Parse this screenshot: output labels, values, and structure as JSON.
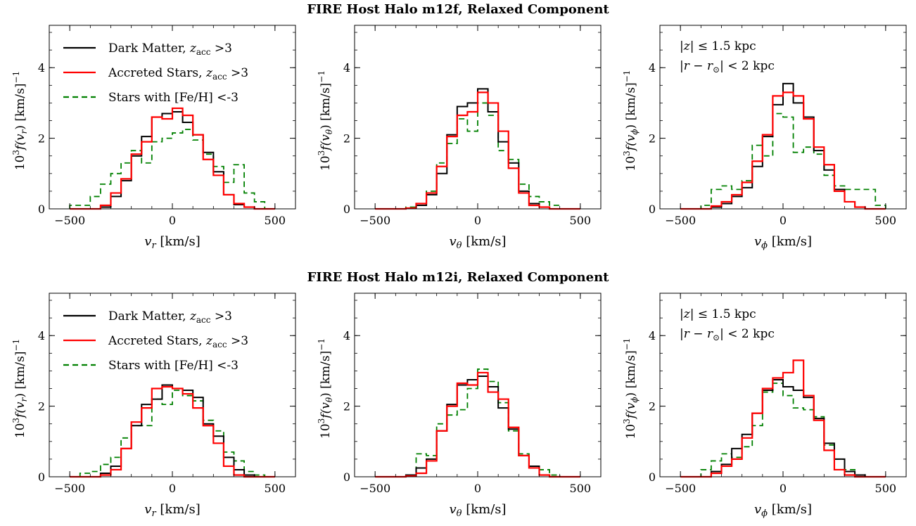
{
  "figure": {
    "rows": [
      {
        "title": "FIRE Host Halo m12f, Relaxed Component"
      },
      {
        "title": "FIRE Host Halo m12i, Relaxed Component"
      }
    ],
    "legend": {
      "dm": "Dark Matter, z_acc >3",
      "acc": "Accreted Stars, z_acc >3",
      "feh": "Stars with [Fe/H] <-3"
    },
    "selection_note": [
      "|z| ≤ 1.5 kpc",
      "|r − r_⊙| < 2 kpc"
    ],
    "series_styles": {
      "dm": "#000000",
      "acc": "#ff0000",
      "feh": "#008000"
    }
  },
  "chart_data": [
    {
      "type": "line",
      "panel": "m12f-vr",
      "xlabel": "v_r [km/s]",
      "ylabel": "10³f(v_r) [km/s]⁻¹",
      "xlim": [
        -600,
        600
      ],
      "ylim": [
        0,
        5.2
      ],
      "xticks": [
        -500,
        0,
        500
      ],
      "yticks": [
        0,
        2,
        4
      ],
      "legend_placement": "top-left",
      "bin_edges": [
        -500,
        -450,
        -400,
        -350,
        -300,
        -250,
        -200,
        -150,
        -100,
        -50,
        0,
        50,
        100,
        150,
        200,
        250,
        300,
        350,
        400,
        450,
        500
      ],
      "series": [
        {
          "key": "dm",
          "values": [
            0,
            0,
            0,
            0.05,
            0.35,
            0.8,
            1.5,
            2.05,
            2.6,
            2.7,
            2.75,
            2.45,
            2.1,
            1.6,
            1.05,
            0.4,
            0.12,
            0.05,
            0,
            0
          ]
        },
        {
          "key": "acc",
          "values": [
            0,
            0,
            0,
            0.1,
            0.45,
            0.85,
            1.55,
            1.9,
            2.6,
            2.55,
            2.85,
            2.65,
            2.1,
            1.4,
            0.95,
            0.4,
            0.15,
            0.05,
            0,
            0
          ]
        },
        {
          "key": "feh",
          "values": [
            0.1,
            0.1,
            0.35,
            0.7,
            1.0,
            1.3,
            1.65,
            1.3,
            1.9,
            2.0,
            2.15,
            2.25,
            1.95,
            1.55,
            1.2,
            0.75,
            1.25,
            0.45,
            0.2,
            0
          ]
        }
      ]
    },
    {
      "type": "line",
      "panel": "m12f-vtheta",
      "xlabel": "v_θ [km/s]",
      "ylabel": "10³f(v_θ) [km/s]⁻¹",
      "xlim": [
        -600,
        600
      ],
      "ylim": [
        0,
        5.2
      ],
      "xticks": [
        -500,
        0,
        500
      ],
      "yticks": [
        0,
        2,
        4
      ],
      "bin_edges": [
        -500,
        -450,
        -400,
        -350,
        -300,
        -250,
        -200,
        -150,
        -100,
        -50,
        0,
        50,
        100,
        150,
        200,
        250,
        300,
        350,
        400,
        450,
        500
      ],
      "series": [
        {
          "key": "dm",
          "values": [
            0,
            0,
            0,
            0.02,
            0.1,
            0.4,
            1.0,
            2.1,
            2.9,
            3.0,
            3.4,
            2.75,
            1.9,
            1.3,
            0.5,
            0.15,
            0.05,
            0,
            0,
            0
          ]
        },
        {
          "key": "acc",
          "values": [
            0,
            0,
            0,
            0.02,
            0.15,
            0.45,
            1.2,
            2.05,
            2.65,
            2.75,
            3.3,
            3.0,
            2.2,
            1.15,
            0.45,
            0.1,
            0.05,
            0,
            0,
            0
          ]
        },
        {
          "key": "feh",
          "values": [
            0,
            0,
            0,
            0.05,
            0.1,
            0.5,
            1.3,
            1.85,
            2.55,
            2.2,
            3.0,
            2.65,
            1.65,
            1.4,
            0.7,
            0.35,
            0.2,
            0.1,
            0,
            0
          ]
        }
      ]
    },
    {
      "type": "line",
      "panel": "m12f-vphi",
      "xlabel": "v_ϕ [km/s]",
      "ylabel": "10³f(v_ϕ) [km/s]⁻¹",
      "xlim": [
        -600,
        600
      ],
      "ylim": [
        0,
        5.2
      ],
      "xticks": [
        -500,
        0,
        500
      ],
      "yticks": [
        0,
        2,
        4
      ],
      "bin_edges": [
        -500,
        -450,
        -400,
        -350,
        -300,
        -250,
        -200,
        -150,
        -100,
        -50,
        0,
        50,
        100,
        150,
        200,
        250,
        300,
        350,
        400,
        450,
        500
      ],
      "series": [
        {
          "key": "dm",
          "values": [
            0,
            0,
            0,
            0.05,
            0.15,
            0.35,
            0.6,
            1.2,
            2.05,
            2.95,
            3.55,
            3.0,
            2.6,
            1.65,
            1.1,
            0.55,
            0.2,
            0.05,
            0,
            0
          ]
        },
        {
          "key": "acc",
          "values": [
            0,
            0,
            0,
            0.08,
            0.2,
            0.4,
            0.75,
            1.35,
            2.1,
            3.2,
            3.3,
            3.2,
            2.55,
            1.75,
            1.25,
            0.5,
            0.2,
            0.05,
            0,
            0
          ]
        },
        {
          "key": "feh",
          "values": [
            0,
            0,
            0.1,
            0.55,
            0.65,
            0.55,
            0.8,
            1.8,
            1.5,
            2.7,
            2.6,
            1.6,
            1.75,
            1.55,
            0.95,
            0.65,
            0.55,
            0.55,
            0.55,
            0.1
          ]
        }
      ]
    },
    {
      "type": "line",
      "panel": "m12i-vr",
      "xlabel": "v_r [km/s]",
      "ylabel": "10³f(v_r) [km/s]⁻¹",
      "xlim": [
        -600,
        600
      ],
      "ylim": [
        0,
        5.2
      ],
      "xticks": [
        -500,
        0,
        500
      ],
      "yticks": [
        0,
        2,
        4
      ],
      "legend_placement": "top-left",
      "bin_edges": [
        -500,
        -450,
        -400,
        -350,
        -300,
        -250,
        -200,
        -150,
        -100,
        -50,
        0,
        50,
        100,
        150,
        200,
        250,
        300,
        350,
        400,
        450,
        500
      ],
      "series": [
        {
          "key": "dm",
          "values": [
            0,
            0,
            0,
            0.1,
            0.3,
            0.8,
            1.45,
            2.05,
            2.2,
            2.6,
            2.5,
            2.45,
            2.25,
            1.5,
            1.15,
            0.55,
            0.2,
            0.05,
            0,
            0
          ]
        },
        {
          "key": "acc",
          "values": [
            0,
            0,
            0,
            0.05,
            0.2,
            0.8,
            1.55,
            1.95,
            2.5,
            2.55,
            2.5,
            2.35,
            1.95,
            1.45,
            0.95,
            0.3,
            0.05,
            0,
            0,
            0
          ]
        },
        {
          "key": "feh",
          "values": [
            0,
            0.1,
            0.15,
            0.35,
            0.55,
            1.1,
            1.45,
            1.45,
            2.2,
            2.05,
            2.45,
            2.3,
            2.15,
            1.6,
            1.3,
            0.7,
            0.45,
            0.15,
            0.05,
            0
          ]
        }
      ]
    },
    {
      "type": "line",
      "panel": "m12i-vtheta",
      "xlabel": "v_θ [km/s]",
      "ylabel": "10³f(v_θ) [km/s]⁻¹",
      "xlim": [
        -600,
        600
      ],
      "ylim": [
        0,
        5.2
      ],
      "xticks": [
        -500,
        0,
        500
      ],
      "yticks": [
        0,
        2,
        4
      ],
      "bin_edges": [
        -500,
        -450,
        -400,
        -350,
        -300,
        -250,
        -200,
        -150,
        -100,
        -50,
        0,
        50,
        100,
        150,
        200,
        250,
        300,
        350,
        400,
        450,
        500
      ],
      "series": [
        {
          "key": "dm",
          "values": [
            0,
            0,
            0,
            0.05,
            0.25,
            0.5,
            1.3,
            2.05,
            2.6,
            2.75,
            2.85,
            2.55,
            1.95,
            1.35,
            0.6,
            0.3,
            0.05,
            0,
            0,
            0
          ]
        },
        {
          "key": "acc",
          "values": [
            0,
            0,
            0,
            0.02,
            0.1,
            0.45,
            1.3,
            2.0,
            2.65,
            2.6,
            2.95,
            2.4,
            2.2,
            1.4,
            0.6,
            0.25,
            0.05,
            0,
            0,
            0
          ]
        },
        {
          "key": "feh",
          "values": [
            0,
            0,
            0,
            0.05,
            0.65,
            0.6,
            1.5,
            1.75,
            1.9,
            2.5,
            3.05,
            2.7,
            2.1,
            1.3,
            0.65,
            0.3,
            0.2,
            0.05,
            0,
            0
          ]
        }
      ]
    },
    {
      "type": "line",
      "panel": "m12i-vphi",
      "xlabel": "v_ϕ [km/s]",
      "ylabel": "10³f(v_ϕ) [km/s]⁻¹",
      "xlim": [
        -600,
        600
      ],
      "ylim": [
        0,
        5.2
      ],
      "xticks": [
        -500,
        0,
        500
      ],
      "yticks": [
        0,
        2,
        4
      ],
      "bin_edges": [
        -500,
        -450,
        -400,
        -350,
        -300,
        -250,
        -200,
        -150,
        -100,
        -50,
        0,
        50,
        100,
        150,
        200,
        250,
        300,
        350,
        400,
        450,
        500
      ],
      "series": [
        {
          "key": "dm",
          "values": [
            0,
            0,
            0,
            0.15,
            0.35,
            0.8,
            1.2,
            1.8,
            2.45,
            2.75,
            2.55,
            2.45,
            2.25,
            1.65,
            0.95,
            0.5,
            0.15,
            0.05,
            0,
            0
          ]
        },
        {
          "key": "acc",
          "values": [
            0,
            0,
            0,
            0.1,
            0.3,
            0.5,
            1.1,
            1.8,
            2.5,
            2.8,
            2.95,
            3.3,
            2.3,
            1.6,
            0.75,
            0.2,
            0.05,
            0,
            0,
            0
          ]
        },
        {
          "key": "feh",
          "values": [
            0,
            0,
            0.2,
            0.45,
            0.65,
            0.55,
            0.85,
            1.45,
            2.4,
            2.65,
            2.3,
            1.95,
            1.9,
            1.7,
            0.9,
            0.5,
            0.2,
            0.05,
            0,
            0
          ]
        }
      ]
    }
  ]
}
